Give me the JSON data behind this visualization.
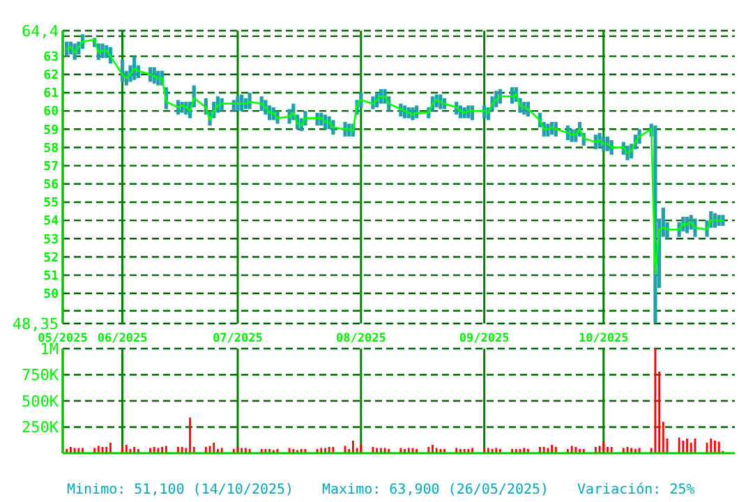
{
  "chart_data": [
    {
      "type": "bar",
      "xlim": [
        "2025-05-18",
        "2025-11-03"
      ],
      "xticks": [
        {
          "value": "2025-05-18",
          "label": "05/2025"
        },
        {
          "value": "2025-06-02",
          "label": "06/2025"
        },
        {
          "value": "2025-07-01",
          "label": "07/2025"
        },
        {
          "value": "2025-08-01",
          "label": "08/2025"
        },
        {
          "value": "2025-09-01",
          "label": "09/2025"
        },
        {
          "value": "2025-10-01",
          "label": "10/2025"
        }
      ],
      "ylim": [
        48.35,
        64.4
      ],
      "yticks": [
        {
          "value": 48.35,
          "label": "48,35"
        },
        {
          "value": 49.05,
          "label": null
        },
        50,
        51,
        52,
        53,
        54,
        55,
        56,
        57,
        58,
        59,
        60,
        61,
        62,
        63,
        {
          "value": 64.1,
          "label": null
        },
        {
          "value": 64.4,
          "label": "64,4"
        }
      ],
      "grid": true,
      "x": [
        "2025-05-19",
        "2025-05-20",
        "2025-05-21",
        "2025-05-22",
        "2025-05-23",
        "2025-05-26",
        "2025-05-27",
        "2025-05-28",
        "2025-05-29",
        "2025-05-30",
        "2025-06-02",
        "2025-06-03",
        "2025-06-04",
        "2025-06-05",
        "2025-06-06",
        "2025-06-09",
        "2025-06-10",
        "2025-06-11",
        "2025-06-12",
        "2025-06-13",
        "2025-06-16",
        "2025-06-17",
        "2025-06-18",
        "2025-06-19",
        "2025-06-20",
        "2025-06-23",
        "2025-06-24",
        "2025-06-25",
        "2025-06-26",
        "2025-06-27",
        "2025-06-30",
        "2025-07-01",
        "2025-07-02",
        "2025-07-03",
        "2025-07-04",
        "2025-07-07",
        "2025-07-08",
        "2025-07-09",
        "2025-07-10",
        "2025-07-11",
        "2025-07-14",
        "2025-07-15",
        "2025-07-16",
        "2025-07-17",
        "2025-07-18",
        "2025-07-21",
        "2025-07-22",
        "2025-07-23",
        "2025-07-24",
        "2025-07-25",
        "2025-07-28",
        "2025-07-29",
        "2025-07-30",
        "2025-07-31",
        "2025-08-01",
        "2025-08-04",
        "2025-08-05",
        "2025-08-06",
        "2025-08-07",
        "2025-08-08",
        "2025-08-11",
        "2025-08-12",
        "2025-08-13",
        "2025-08-14",
        "2025-08-15",
        "2025-08-18",
        "2025-08-19",
        "2025-08-20",
        "2025-08-21",
        "2025-08-22",
        "2025-08-25",
        "2025-08-26",
        "2025-08-27",
        "2025-08-28",
        "2025-08-29",
        "2025-09-01",
        "2025-09-02",
        "2025-09-03",
        "2025-09-04",
        "2025-09-05",
        "2025-09-08",
        "2025-09-09",
        "2025-09-10",
        "2025-09-11",
        "2025-09-12",
        "2025-09-15",
        "2025-09-16",
        "2025-09-17",
        "2025-09-18",
        "2025-09-19",
        "2025-09-22",
        "2025-09-23",
        "2025-09-24",
        "2025-09-25",
        "2025-09-26",
        "2025-09-29",
        "2025-09-30",
        "2025-10-01",
        "2025-10-02",
        "2025-10-03",
        "2025-10-06",
        "2025-10-07",
        "2025-10-08",
        "2025-10-09",
        "2025-10-10",
        "2025-10-13",
        "2025-10-14",
        "2025-10-15",
        "2025-10-16",
        "2025-10-17",
        "2025-10-20",
        "2025-10-21",
        "2025-10-22",
        "2025-10-23",
        "2025-10-24",
        "2025-10-27",
        "2025-10-28",
        "2025-10-29",
        "2025-10-30",
        "2025-10-31"
      ],
      "series": [
        {
          "type": "bar",
          "color": "#20a0a8",
          "base": [
            63.0,
            63.1,
            62.8,
            63.1,
            63.4,
            63.5,
            62.8,
            62.9,
            62.9,
            62.6,
            61.6,
            61.4,
            61.6,
            61.7,
            61.8,
            61.6,
            61.5,
            61.4,
            61.4,
            60.1,
            59.8,
            59.9,
            59.8,
            59.6,
            60.2,
            59.8,
            59.2,
            59.6,
            59.9,
            60.0,
            60.0,
            60.0,
            60.0,
            60.1,
            60.1,
            60.0,
            59.8,
            59.5,
            59.5,
            59.3,
            59.3,
            59.5,
            59.0,
            58.9,
            59.2,
            59.2,
            59.2,
            59.0,
            59.0,
            58.7,
            58.6,
            58.6,
            58.6,
            59.8,
            60.2,
            60.1,
            60.2,
            60.4,
            60.4,
            60.0,
            59.7,
            59.6,
            59.6,
            59.5,
            59.6,
            59.6,
            60.0,
            60.2,
            60.1,
            60.1,
            59.8,
            59.6,
            59.6,
            59.6,
            59.5,
            59.6,
            59.5,
            60.0,
            60.2,
            60.4,
            60.4,
            60.5,
            59.9,
            59.8,
            59.7,
            59.1,
            58.6,
            58.6,
            58.7,
            58.6,
            58.4,
            58.3,
            58.3,
            58.6,
            58.1,
            57.9,
            58.0,
            57.8,
            57.8,
            57.6,
            57.6,
            57.3,
            57.4,
            57.9,
            58.2,
            58.6,
            48.4,
            50.3,
            53.1,
            53.0,
            53.1,
            53.4,
            53.3,
            53.5,
            53.1,
            53.1,
            53.6,
            53.6,
            53.7,
            53.7
          ],
          "values": [
            0.8,
            0.7,
            0.9,
            0.7,
            0.8,
            0.5,
            0.9,
            0.8,
            0.7,
            0.9,
            1.2,
            0.8,
            0.9,
            1.3,
            0.7,
            0.8,
            0.9,
            0.8,
            0.8,
            1.2,
            0.8,
            0.6,
            0.7,
            0.9,
            1.2,
            0.9,
            0.8,
            0.9,
            0.9,
            0.7,
            0.6,
            0.8,
            0.9,
            0.6,
            0.9,
            0.8,
            0.8,
            0.8,
            0.7,
            0.7,
            0.8,
            0.9,
            0.8,
            0.7,
            0.8,
            0.7,
            0.7,
            0.8,
            0.7,
            0.8,
            0.8,
            0.7,
            0.7,
            0.8,
            0.8,
            0.7,
            0.8,
            0.8,
            0.8,
            0.8,
            0.7,
            0.7,
            0.6,
            0.7,
            0.7,
            0.6,
            0.8,
            0.7,
            0.8,
            0.6,
            0.7,
            0.7,
            0.6,
            0.7,
            0.8,
            0.7,
            0.7,
            0.8,
            0.9,
            0.8,
            0.9,
            0.8,
            0.8,
            0.7,
            0.8,
            0.8,
            0.8,
            0.7,
            0.7,
            0.8,
            0.8,
            0.7,
            0.7,
            0.8,
            0.7,
            0.8,
            0.8,
            0.8,
            0.8,
            0.8,
            0.7,
            0.8,
            0.8,
            0.8,
            0.8,
            0.7,
            10.8,
            3.8,
            1.6,
            0.9,
            0.8,
            0.8,
            0.9,
            0.8,
            1.0,
            0.9,
            0.9,
            0.8,
            0.6,
            0.6
          ]
        },
        {
          "type": "line",
          "color": "#00ff00",
          "values": [
            63.4,
            63.5,
            63.2,
            63.5,
            63.8,
            63.9,
            63.2,
            63.3,
            63.3,
            63.0,
            62.0,
            61.8,
            62.0,
            62.3,
            62.2,
            62.0,
            61.9,
            61.8,
            61.8,
            60.5,
            60.2,
            60.3,
            60.2,
            60.0,
            60.7,
            60.2,
            59.5,
            60.0,
            60.3,
            60.4,
            60.4,
            60.4,
            60.4,
            60.4,
            60.5,
            60.4,
            60.2,
            59.9,
            59.9,
            59.6,
            59.7,
            59.9,
            59.3,
            59.2,
            59.6,
            59.6,
            59.6,
            59.4,
            59.4,
            59.1,
            59.0,
            59.0,
            58.9,
            60.4,
            60.6,
            60.4,
            60.6,
            60.8,
            60.8,
            60.4,
            60.1,
            60.0,
            59.9,
            59.8,
            59.9,
            59.9,
            60.4,
            60.6,
            60.5,
            60.4,
            60.2,
            60.0,
            59.9,
            60.0,
            60.0,
            60.0,
            59.9,
            60.4,
            60.6,
            60.8,
            60.8,
            60.9,
            60.3,
            60.2,
            60.1,
            59.5,
            59.0,
            59.0,
            59.1,
            59.0,
            58.8,
            58.7,
            58.7,
            59.0,
            58.5,
            58.3,
            58.4,
            58.2,
            58.2,
            58.0,
            58.0,
            57.7,
            57.8,
            58.3,
            58.6,
            59.0,
            51.1,
            53.5,
            53.6,
            53.5,
            53.5,
            53.8,
            53.8,
            53.9,
            53.6,
            53.5,
            54.0,
            54.0,
            54.0,
            54.0
          ]
        }
      ]
    },
    {
      "type": "bar",
      "tick_labels": "y",
      "xlim": [
        "2025-05-18",
        "2025-11-03"
      ],
      "xticks": [
        {
          "value": "2025-05-18",
          "label": null
        },
        {
          "value": "2025-06-02",
          "label": null
        },
        {
          "value": "2025-07-01",
          "label": null
        },
        {
          "value": "2025-08-01",
          "label": null
        },
        {
          "value": "2025-09-01",
          "label": null
        },
        {
          "value": "2025-10-01",
          "label": null
        }
      ],
      "ylim": [
        0,
        1000000
      ],
      "yticks": [
        {
          "value": 250000,
          "label": "250K"
        },
        {
          "value": 500000,
          "label": "500K"
        },
        {
          "value": 750000,
          "label": "750K"
        },
        {
          "value": 1000000,
          "label": "1M"
        }
      ],
      "grid": true,
      "color": "#ff0000",
      "x": [
        "2025-05-19",
        "2025-05-20",
        "2025-05-21",
        "2025-05-22",
        "2025-05-23",
        "2025-05-26",
        "2025-05-27",
        "2025-05-28",
        "2025-05-29",
        "2025-05-30",
        "2025-06-02",
        "2025-06-03",
        "2025-06-04",
        "2025-06-05",
        "2025-06-06",
        "2025-06-09",
        "2025-06-10",
        "2025-06-11",
        "2025-06-12",
        "2025-06-13",
        "2025-06-16",
        "2025-06-17",
        "2025-06-18",
        "2025-06-19",
        "2025-06-20",
        "2025-06-23",
        "2025-06-24",
        "2025-06-25",
        "2025-06-26",
        "2025-06-27",
        "2025-06-30",
        "2025-07-01",
        "2025-07-02",
        "2025-07-03",
        "2025-07-04",
        "2025-07-07",
        "2025-07-08",
        "2025-07-09",
        "2025-07-10",
        "2025-07-11",
        "2025-07-14",
        "2025-07-15",
        "2025-07-16",
        "2025-07-17",
        "2025-07-18",
        "2025-07-21",
        "2025-07-22",
        "2025-07-23",
        "2025-07-24",
        "2025-07-25",
        "2025-07-28",
        "2025-07-29",
        "2025-07-30",
        "2025-07-31",
        "2025-08-01",
        "2025-08-04",
        "2025-08-05",
        "2025-08-06",
        "2025-08-07",
        "2025-08-08",
        "2025-08-11",
        "2025-08-12",
        "2025-08-13",
        "2025-08-14",
        "2025-08-15",
        "2025-08-18",
        "2025-08-19",
        "2025-08-20",
        "2025-08-21",
        "2025-08-22",
        "2025-08-25",
        "2025-08-26",
        "2025-08-27",
        "2025-08-28",
        "2025-08-29",
        "2025-09-01",
        "2025-09-02",
        "2025-09-03",
        "2025-09-04",
        "2025-09-05",
        "2025-09-08",
        "2025-09-09",
        "2025-09-10",
        "2025-09-11",
        "2025-09-12",
        "2025-09-15",
        "2025-09-16",
        "2025-09-17",
        "2025-09-18",
        "2025-09-19",
        "2025-09-22",
        "2025-09-23",
        "2025-09-24",
        "2025-09-25",
        "2025-09-26",
        "2025-09-29",
        "2025-09-30",
        "2025-10-01",
        "2025-10-02",
        "2025-10-03",
        "2025-10-06",
        "2025-10-07",
        "2025-10-08",
        "2025-10-09",
        "2025-10-10",
        "2025-10-13",
        "2025-10-14",
        "2025-10-15",
        "2025-10-16",
        "2025-10-17",
        "2025-10-20",
        "2025-10-21",
        "2025-10-22",
        "2025-10-23",
        "2025-10-24",
        "2025-10-27",
        "2025-10-28",
        "2025-10-29",
        "2025-10-30",
        "2025-10-31"
      ],
      "values": [
        40000,
        60000,
        50000,
        50000,
        50000,
        50000,
        70000,
        60000,
        60000,
        100000,
        60000,
        80000,
        40000,
        60000,
        40000,
        50000,
        60000,
        50000,
        60000,
        70000,
        60000,
        60000,
        50000,
        340000,
        60000,
        60000,
        70000,
        100000,
        40000,
        50000,
        40000,
        60000,
        50000,
        50000,
        40000,
        40000,
        40000,
        40000,
        30000,
        40000,
        50000,
        40000,
        30000,
        40000,
        40000,
        40000,
        50000,
        50000,
        60000,
        60000,
        70000,
        40000,
        120000,
        50000,
        80000,
        60000,
        50000,
        50000,
        50000,
        40000,
        50000,
        40000,
        50000,
        50000,
        40000,
        60000,
        80000,
        50000,
        40000,
        40000,
        50000,
        40000,
        40000,
        40000,
        50000,
        50000,
        50000,
        40000,
        50000,
        40000,
        40000,
        40000,
        40000,
        50000,
        40000,
        60000,
        60000,
        50000,
        80000,
        60000,
        40000,
        70000,
        60000,
        40000,
        40000,
        60000,
        70000,
        110000,
        60000,
        60000,
        50000,
        60000,
        50000,
        40000,
        50000,
        50000,
        1000000,
        780000,
        300000,
        140000,
        150000,
        120000,
        140000,
        100000,
        140000,
        100000,
        140000,
        120000,
        110000,
        20000
      ],
      "annotations": [
        "Minimo: 51,100 (14/10/2025)",
        "Maximo: 63,900 (26/05/2025)",
        "Variación: 25%"
      ]
    }
  ]
}
